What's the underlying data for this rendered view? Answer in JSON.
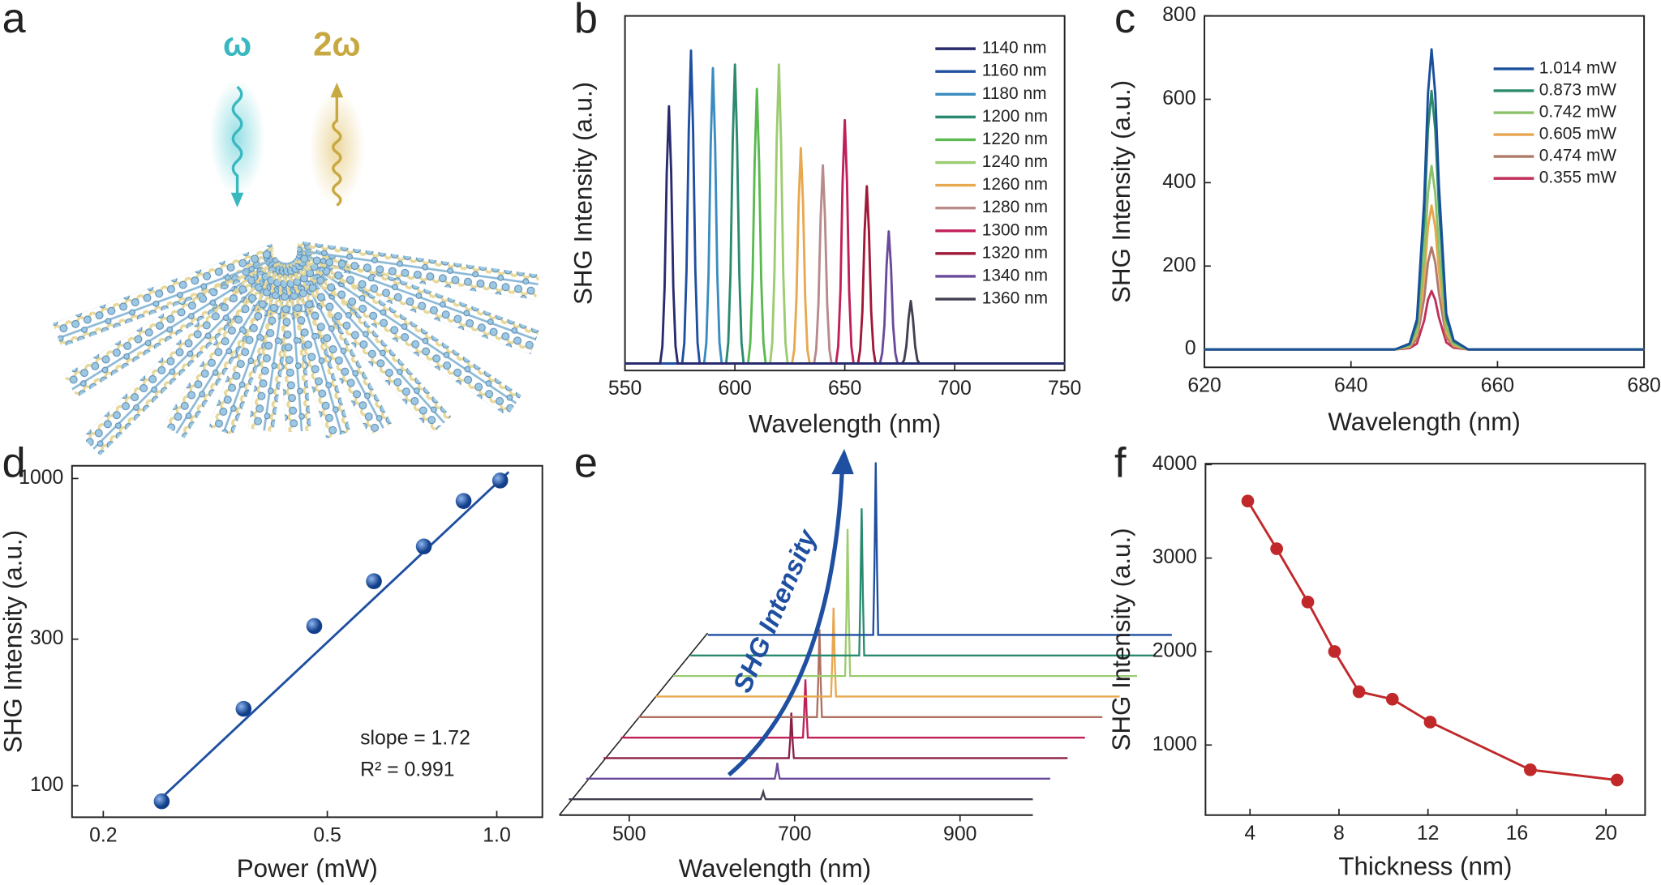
{
  "illustration": {
    "panel": "a",
    "labels": [
      "ω",
      "2ω"
    ]
  },
  "chart_data": [
    {
      "type": "line",
      "panel": "b",
      "xlabel": "Wavelength (nm)",
      "ylabel": "SHG Intensity (a.u.)",
      "xlim": [
        550,
        750
      ],
      "xticks": [
        550,
        600,
        650,
        700,
        750
      ],
      "ylim": [
        -2,
        100
      ],
      "legend": "upper right",
      "series": [
        {
          "name": "1140 nm",
          "color": "#2a2a6e",
          "x": [
            550,
            566,
            567,
            568,
            569,
            570,
            571,
            572,
            573,
            574,
            750
          ],
          "values": [
            0,
            0,
            5,
            22,
            55,
            74,
            55,
            22,
            5,
            0,
            0
          ]
        },
        {
          "name": "1160 nm",
          "color": "#1f4fa0",
          "x": [
            550,
            576,
            577,
            578,
            579,
            580,
            581,
            582,
            583,
            584,
            750
          ],
          "values": [
            0,
            0,
            6,
            27,
            67,
            90,
            67,
            27,
            6,
            0,
            0
          ]
        },
        {
          "name": "1180 nm",
          "color": "#3a8cc0",
          "x": [
            550,
            586,
            587,
            588,
            589,
            590,
            591,
            592,
            593,
            594,
            750
          ],
          "values": [
            0,
            0,
            6,
            26,
            63,
            85,
            63,
            26,
            6,
            0,
            0
          ]
        },
        {
          "name": "1200 nm",
          "color": "#2a8a70",
          "x": [
            550,
            596,
            597,
            598,
            599,
            600,
            601,
            602,
            603,
            604,
            750
          ],
          "values": [
            0,
            0,
            6,
            26,
            64,
            86,
            64,
            26,
            6,
            0,
            0
          ]
        },
        {
          "name": "1220 nm",
          "color": "#5aba50",
          "x": [
            550,
            606,
            607,
            608,
            609,
            610,
            611,
            612,
            613,
            614,
            750
          ],
          "values": [
            0,
            0,
            6,
            24,
            58,
            79,
            58,
            24,
            6,
            0,
            0
          ]
        },
        {
          "name": "1240 nm",
          "color": "#9ccc70",
          "x": [
            550,
            616,
            617,
            618,
            619,
            620,
            621,
            622,
            623,
            624,
            750
          ],
          "values": [
            0,
            0,
            6,
            26,
            64,
            86,
            64,
            26,
            6,
            0,
            0
          ]
        },
        {
          "name": "1260 nm",
          "color": "#e8a850",
          "x": [
            550,
            626,
            627,
            628,
            629,
            630,
            631,
            632,
            633,
            634,
            750
          ],
          "values": [
            0,
            0,
            4,
            19,
            46,
            62,
            46,
            19,
            4,
            0,
            0
          ]
        },
        {
          "name": "1280 nm",
          "color": "#b88a8a",
          "x": [
            550,
            636,
            637,
            638,
            639,
            640,
            641,
            642,
            643,
            644,
            750
          ],
          "values": [
            0,
            0,
            4,
            17,
            42,
            57,
            42,
            17,
            4,
            0,
            0
          ]
        },
        {
          "name": "1300 nm",
          "color": "#c0205a",
          "x": [
            550,
            646,
            647,
            648,
            649,
            650,
            651,
            652,
            653,
            654,
            750
          ],
          "values": [
            0,
            0,
            5,
            21,
            52,
            70,
            52,
            21,
            5,
            0,
            0
          ]
        },
        {
          "name": "1320 nm",
          "color": "#a01838",
          "x": [
            550,
            656,
            657,
            658,
            659,
            660,
            661,
            662,
            663,
            664,
            750
          ],
          "values": [
            0,
            0,
            4,
            15,
            38,
            51,
            38,
            15,
            4,
            0,
            0
          ]
        },
        {
          "name": "1340 nm",
          "color": "#6a4a9a",
          "x": [
            550,
            666,
            667,
            668,
            669,
            670,
            671,
            672,
            673,
            674,
            750
          ],
          "values": [
            0,
            0,
            3,
            11,
            28,
            38,
            28,
            11,
            3,
            0,
            0
          ]
        },
        {
          "name": "1360 nm",
          "color": "#404050",
          "x": [
            550,
            676,
            677,
            678,
            679,
            680,
            681,
            682,
            683,
            684,
            750
          ],
          "values": [
            0,
            0,
            1,
            5,
            13,
            18,
            13,
            5,
            1,
            0,
            0
          ]
        }
      ]
    },
    {
      "type": "line",
      "panel": "c",
      "xlabel": "Wavelength (nm)",
      "ylabel": "SHG Intensity (a.u.)",
      "xlim": [
        620,
        680
      ],
      "xticks": [
        620,
        640,
        660,
        680
      ],
      "ylim": [
        -43,
        800
      ],
      "yticks": [
        0,
        200,
        400,
        600,
        800
      ],
      "legend": "upper right",
      "x": [
        620,
        646,
        648,
        649,
        650,
        650.5,
        651,
        651.5,
        652,
        653,
        654,
        656,
        680
      ],
      "series": [
        {
          "name": "1.014 mW",
          "color": "#1a4f9c",
          "values": [
            0,
            0,
            14,
            72,
            360,
            612,
            720,
            612,
            396,
            86,
            22,
            0,
            0
          ]
        },
        {
          "name": "0.873 mW",
          "color": "#2a8a6a",
          "values": [
            0,
            0,
            12,
            62,
            310,
            527,
            620,
            527,
            341,
            74,
            19,
            0,
            0
          ]
        },
        {
          "name": "0.742 mW",
          "color": "#8cc06a",
          "values": [
            0,
            0,
            9,
            44,
            220,
            374,
            440,
            374,
            242,
            53,
            13,
            0,
            0
          ]
        },
        {
          "name": "0.605 mW",
          "color": "#e8a650",
          "values": [
            0,
            0,
            7,
            35,
            173,
            293,
            345,
            293,
            190,
            41,
            10,
            0,
            0
          ]
        },
        {
          "name": "0.474 mW",
          "color": "#b07a6a",
          "values": [
            0,
            0,
            5,
            25,
            123,
            208,
            245,
            208,
            135,
            29,
            7,
            0,
            0
          ]
        },
        {
          "name": "0.355 mW",
          "color": "#c0305a",
          "values": [
            0,
            0,
            3,
            14,
            70,
            119,
            140,
            119,
            77,
            17,
            4,
            0,
            0
          ]
        }
      ]
    },
    {
      "type": "scatter",
      "panel": "d",
      "xlabel": "Power (mW)",
      "ylabel": "SHG Intensity (a.u.)",
      "xscale": "log",
      "yscale": "log",
      "xlim": [
        0.176,
        1.205
      ],
      "ylim": [
        79,
        1100
      ],
      "xticks": [
        0.2,
        0.5,
        {
          "value": 1,
          "label": "1.0"
        }
      ],
      "yticks": [
        100,
        300,
        1000
      ],
      "color": "#1f4fa0",
      "x": [
        0.254,
        0.355,
        0.474,
        0.605,
        0.742,
        0.873,
        1.014
      ],
      "values": [
        89,
        178,
        331,
        463,
        601,
        845,
        985
      ],
      "fit": {
        "x": [
          0.25,
          1.05
        ],
        "values": [
          89,
          1050
        ]
      },
      "annotations": [
        "slope = 1.72",
        "R² = 0.991"
      ]
    },
    {
      "type": "waterfall",
      "panel": "e",
      "xlabel": "Wavelength (nm)",
      "annotation": "SHG Intensity",
      "xlim": [
        427,
        988
      ],
      "xticks": [
        500,
        700,
        900
      ],
      "ylim": [
        0,
        170
      ],
      "series": [
        {
          "color": "#404050",
          "x": [
            427,
            659,
            660.5,
            662,
            663.5,
            665,
            988
          ],
          "values": [
            0,
            0,
            3,
            7,
            3,
            0,
            0
          ]
        },
        {
          "color": "#6a4a9a",
          "x": [
            427,
            655,
            656.5,
            658,
            659.5,
            661,
            988
          ],
          "values": [
            0,
            0,
            6,
            15,
            6,
            0,
            0
          ]
        },
        {
          "color": "#8a2048",
          "x": [
            427,
            651,
            652.5,
            654,
            655.5,
            657,
            988
          ],
          "values": [
            0,
            0,
            17,
            43,
            17,
            0,
            0
          ]
        },
        {
          "color": "#c0205a",
          "x": [
            427,
            647,
            648.5,
            650,
            651.5,
            653,
            988
          ],
          "values": [
            0,
            0,
            22,
            55,
            22,
            0,
            0
          ]
        },
        {
          "color": "#b07060",
          "x": [
            427,
            643,
            644.5,
            646,
            647.5,
            649,
            988
          ],
          "values": [
            0,
            0,
            33,
            83,
            33,
            0,
            0
          ]
        },
        {
          "color": "#e8a850",
          "x": [
            427,
            639,
            640.5,
            642,
            643.5,
            645,
            988
          ],
          "values": [
            0,
            0,
            34,
            84,
            34,
            0,
            0
          ]
        },
        {
          "color": "#9ccc70",
          "x": [
            427,
            635,
            636.5,
            638,
            639.5,
            641,
            988
          ],
          "values": [
            0,
            0,
            56,
            139,
            56,
            0,
            0
          ]
        },
        {
          "color": "#2a8a70",
          "x": [
            427,
            631,
            632.5,
            634,
            635.5,
            637,
            988
          ],
          "values": [
            0,
            0,
            56,
            139,
            56,
            0,
            0
          ]
        },
        {
          "color": "#1f4fa0",
          "x": [
            427,
            627,
            628.5,
            630,
            631.5,
            633,
            988
          ],
          "values": [
            0,
            0,
            65,
            163,
            65,
            0,
            0
          ]
        }
      ]
    },
    {
      "type": "line",
      "panel": "f",
      "xlabel": "Thickness (nm)",
      "ylabel": "SHG Intensity (a.u.)",
      "xlim": [
        2,
        21.76
      ],
      "xticks": [
        4,
        8,
        12,
        16,
        20
      ],
      "ylim": [
        250,
        4010
      ],
      "yticks": [
        1000,
        2000,
        3000,
        4000
      ],
      "markers": true,
      "x": [
        3.9,
        5.2,
        6.6,
        7.8,
        8.9,
        10.4,
        12.1,
        16.6,
        20.5
      ],
      "series": [
        {
          "color": "#c0282a",
          "values": [
            3610,
            3100,
            2530,
            2000,
            1570,
            1490,
            1245,
            735,
            625
          ]
        }
      ]
    }
  ]
}
